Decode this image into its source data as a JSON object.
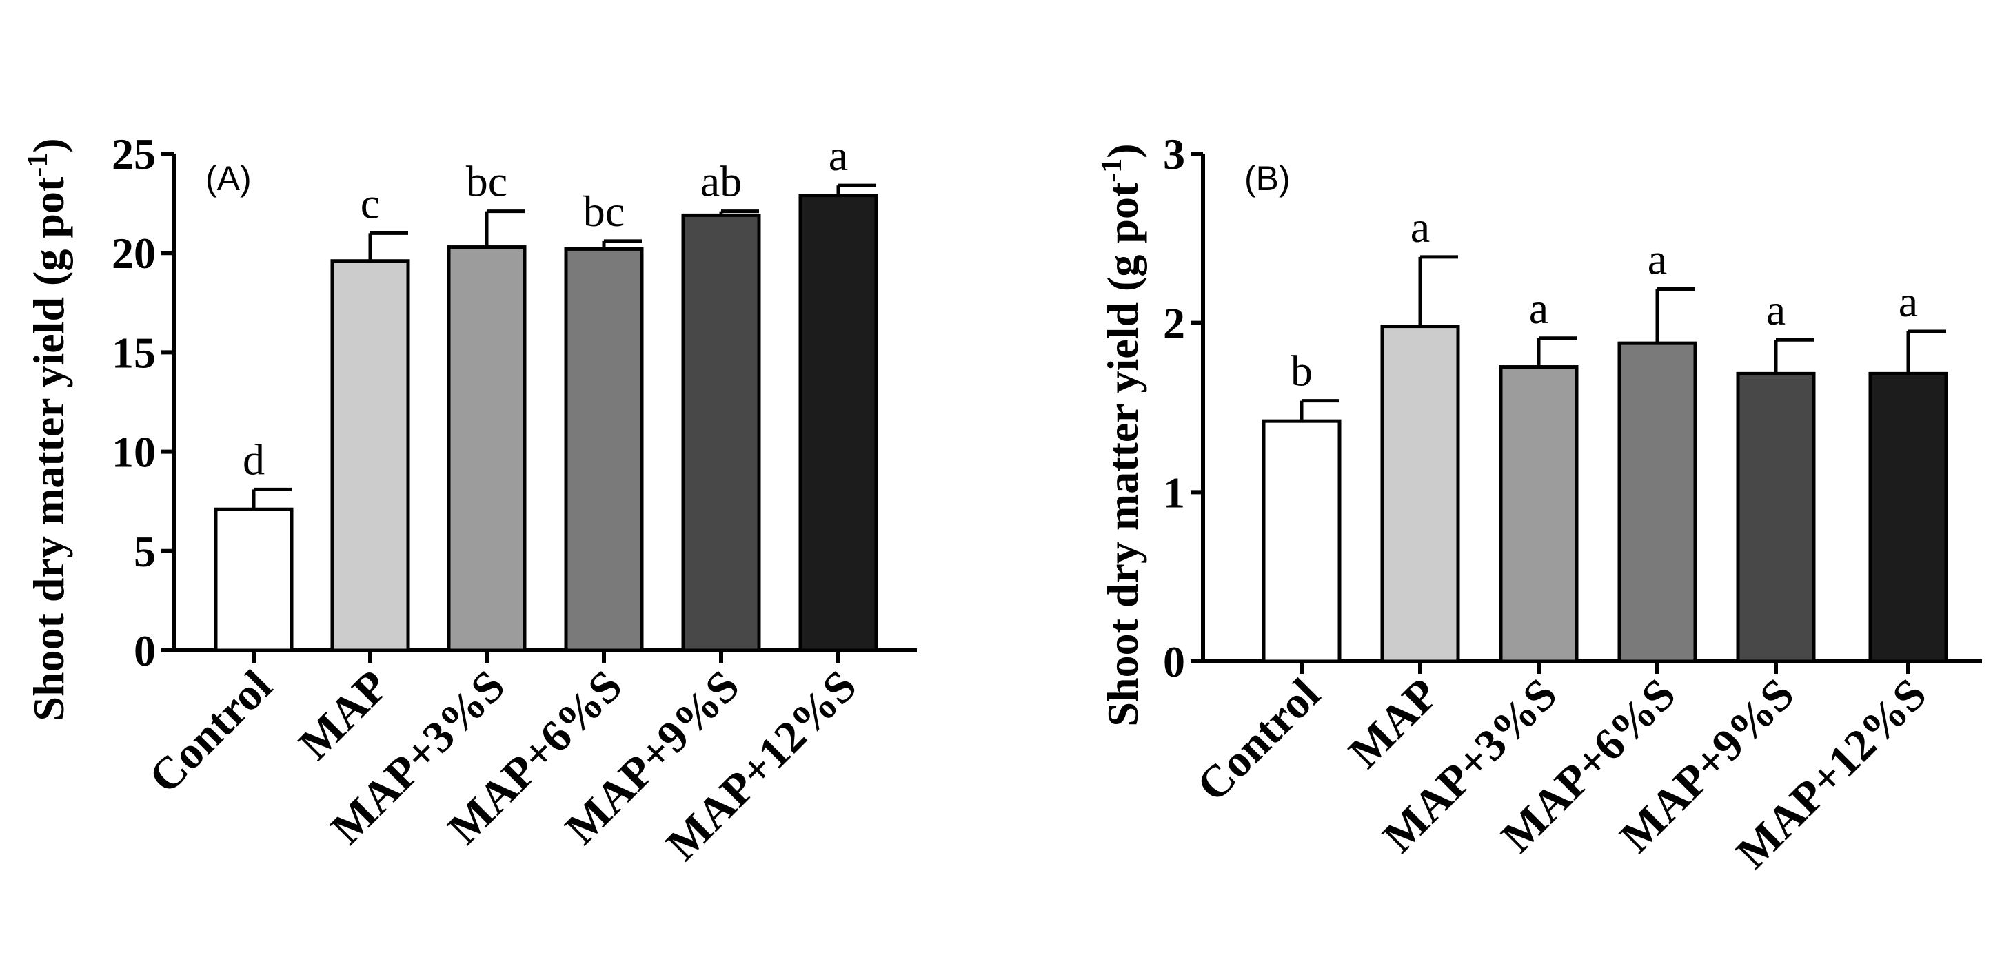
{
  "chart_data": [
    {
      "type": "bar",
      "panel_label": "(A)",
      "ylabel": "Shoot dry matter yield (g pot",
      "ylabel_sup": "-1",
      "ylabel_close": ")",
      "ylim": [
        0,
        25
      ],
      "yticks": [
        0,
        5,
        10,
        15,
        20,
        25
      ],
      "categories": [
        "Control",
        "MAP",
        "MAP+3%S",
        "MAP+6%S",
        "MAP+9%S",
        "MAP+12%S"
      ],
      "values": [
        7.1,
        19.6,
        20.3,
        20.2,
        21.9,
        22.9
      ],
      "errors": [
        1.0,
        1.4,
        1.8,
        0.4,
        0.2,
        0.5
      ],
      "significance": [
        "d",
        "c",
        "bc",
        "bc",
        "ab",
        "a"
      ],
      "colors": [
        "#ffffff",
        "#cccccc",
        "#9c9c9c",
        "#7a7a7a",
        "#484848",
        "#1c1c1c"
      ]
    },
    {
      "type": "bar",
      "panel_label": "(B)",
      "ylabel": "Shoot dry matter yield (g pot",
      "ylabel_sup": "-1",
      "ylabel_close": ")",
      "ylim": [
        0,
        3
      ],
      "yticks": [
        0,
        1,
        2,
        3
      ],
      "categories": [
        "Control",
        "MAP",
        "MAP+3%S",
        "MAP+6%S",
        "MAP+9%S",
        "MAP+12%S"
      ],
      "values": [
        1.42,
        1.98,
        1.74,
        1.88,
        1.7,
        1.7
      ],
      "errors": [
        0.12,
        0.41,
        0.17,
        0.32,
        0.2,
        0.25
      ],
      "significance": [
        "b",
        "a",
        "a",
        "a",
        "a",
        "a"
      ],
      "colors": [
        "#ffffff",
        "#cccccc",
        "#9c9c9c",
        "#7a7a7a",
        "#484848",
        "#1c1c1c"
      ]
    }
  ]
}
